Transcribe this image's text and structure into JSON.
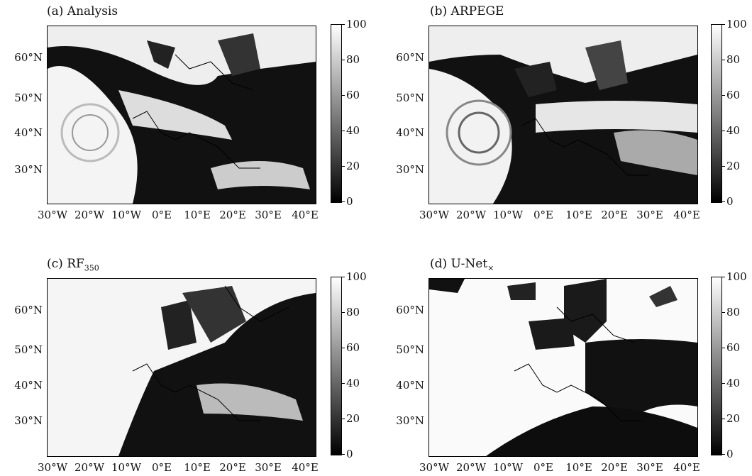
{
  "panels": [
    {
      "id": "a",
      "title": "(a) Analysis"
    },
    {
      "id": "b",
      "title": "(b) ARPEGE"
    },
    {
      "id": "c",
      "title_main": "(c) RF",
      "title_sub": "350"
    },
    {
      "id": "d",
      "title_main": "(d) U-Net",
      "title_sub": "×"
    }
  ],
  "lat_labels": [
    "60°N",
    "50°N",
    "40°N",
    "30°N"
  ],
  "lon_labels": [
    "30°W",
    "20°W",
    "10°W",
    "0°E",
    "10°E",
    "20°E",
    "30°E",
    "40°E"
  ],
  "colorbar": {
    "ticks": [
      "100",
      "80",
      "60",
      "40",
      "20",
      "0"
    ],
    "min": 0,
    "max": 100,
    "colormap": "grayscale (black = 0, white = 100)"
  },
  "colors": {
    "low": "#000000",
    "high": "#ffffff"
  }
}
